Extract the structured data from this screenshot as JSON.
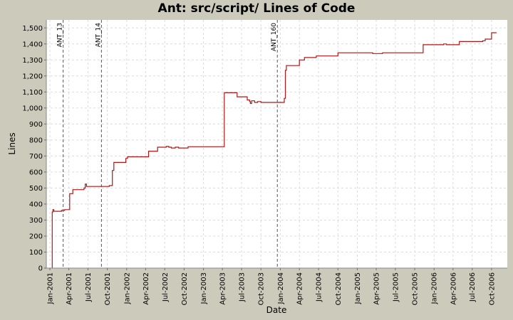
{
  "chart_data": {
    "type": "line",
    "title": "Ant: src/script/ Lines of Code",
    "xlabel": "Date",
    "ylabel": "Lines",
    "ylim": [
      0,
      1550
    ],
    "xlim": [
      "2000-12-15",
      "2006-12-15"
    ],
    "grid": true,
    "y_ticks": [
      0,
      100,
      200,
      300,
      400,
      500,
      600,
      700,
      800,
      900,
      1000,
      1100,
      1200,
      1300,
      1400,
      1500
    ],
    "y_tick_labels": [
      "0",
      "100",
      "200",
      "300",
      "400",
      "500",
      "600",
      "700",
      "800",
      "900",
      "1,000",
      "1,100",
      "1,200",
      "1,300",
      "1,400",
      "1,500"
    ],
    "x_ticks": [
      {
        "date": "2001-01-01",
        "label": "Jan-2001"
      },
      {
        "date": "2001-04-01",
        "label": "Apr-2001"
      },
      {
        "date": "2001-07-01",
        "label": "Jul-2001"
      },
      {
        "date": "2001-10-01",
        "label": "Oct-2001"
      },
      {
        "date": "2002-01-01",
        "label": "Jan-2002"
      },
      {
        "date": "2002-04-01",
        "label": "Apr-2002"
      },
      {
        "date": "2002-07-01",
        "label": "Jul-2002"
      },
      {
        "date": "2002-10-01",
        "label": "Oct-2002"
      },
      {
        "date": "2003-01-01",
        "label": "Jan-2003"
      },
      {
        "date": "2003-04-01",
        "label": "Apr-2003"
      },
      {
        "date": "2003-07-01",
        "label": "Jul-2003"
      },
      {
        "date": "2003-10-01",
        "label": "Oct-2003"
      },
      {
        "date": "2004-01-01",
        "label": "Jan-2004"
      },
      {
        "date": "2004-04-01",
        "label": "Apr-2004"
      },
      {
        "date": "2004-07-01",
        "label": "Jul-2004"
      },
      {
        "date": "2004-10-01",
        "label": "Oct-2004"
      },
      {
        "date": "2005-01-01",
        "label": "Jan-2005"
      },
      {
        "date": "2005-04-01",
        "label": "Apr-2005"
      },
      {
        "date": "2005-07-01",
        "label": "Jul-2005"
      },
      {
        "date": "2005-10-01",
        "label": "Oct-2005"
      },
      {
        "date": "2006-01-01",
        "label": "Jan-2006"
      },
      {
        "date": "2006-04-01",
        "label": "Apr-2006"
      },
      {
        "date": "2006-07-01",
        "label": "Jul-2006"
      },
      {
        "date": "2006-10-01",
        "label": "Oct-2006"
      }
    ],
    "markers": [
      {
        "label": "ANT_13",
        "date": "2001-03-05"
      },
      {
        "label": "ANT_14",
        "date": "2001-09-03"
      },
      {
        "label": "ANT_160",
        "date": "2003-12-18"
      }
    ],
    "series": [
      {
        "color": "#b01818",
        "points": [
          [
            "2001-01-12",
            0
          ],
          [
            "2001-01-12",
            350
          ],
          [
            "2001-01-15",
            365
          ],
          [
            "2001-01-20",
            355
          ],
          [
            "2001-02-25",
            360
          ],
          [
            "2001-03-12",
            365
          ],
          [
            "2001-04-05",
            465
          ],
          [
            "2001-04-20",
            490
          ],
          [
            "2001-06-12",
            500
          ],
          [
            "2001-06-18",
            525
          ],
          [
            "2001-06-24",
            510
          ],
          [
            "2001-10-10",
            515
          ],
          [
            "2001-10-25",
            610
          ],
          [
            "2001-11-01",
            660
          ],
          [
            "2001-12-28",
            685
          ],
          [
            "2002-01-05",
            695
          ],
          [
            "2002-04-15",
            730
          ],
          [
            "2002-05-28",
            755
          ],
          [
            "2002-07-08",
            760
          ],
          [
            "2002-07-20",
            755
          ],
          [
            "2002-08-01",
            750
          ],
          [
            "2002-08-20",
            755
          ],
          [
            "2002-09-05",
            750
          ],
          [
            "2002-10-20",
            758
          ],
          [
            "2003-04-10",
            1095
          ],
          [
            "2003-06-10",
            1070
          ],
          [
            "2003-07-28",
            1050
          ],
          [
            "2003-08-08",
            1040
          ],
          [
            "2003-08-12",
            1028
          ],
          [
            "2003-08-18",
            1045
          ],
          [
            "2003-09-01",
            1035
          ],
          [
            "2003-09-15",
            1040
          ],
          [
            "2003-10-01",
            1035
          ],
          [
            "2004-01-20",
            1060
          ],
          [
            "2004-01-25",
            1235
          ],
          [
            "2004-01-30",
            1265
          ],
          [
            "2004-04-01",
            1300
          ],
          [
            "2004-04-25",
            1315
          ],
          [
            "2004-06-20",
            1325
          ],
          [
            "2004-10-01",
            1345
          ],
          [
            "2005-03-15",
            1340
          ],
          [
            "2005-05-01",
            1345
          ],
          [
            "2005-11-10",
            1395
          ],
          [
            "2006-02-15",
            1400
          ],
          [
            "2006-03-01",
            1395
          ],
          [
            "2006-05-01",
            1415
          ],
          [
            "2006-08-20",
            1420
          ],
          [
            "2006-09-01",
            1430
          ],
          [
            "2006-10-01",
            1470
          ],
          [
            "2006-10-25",
            1470
          ]
        ]
      }
    ]
  }
}
